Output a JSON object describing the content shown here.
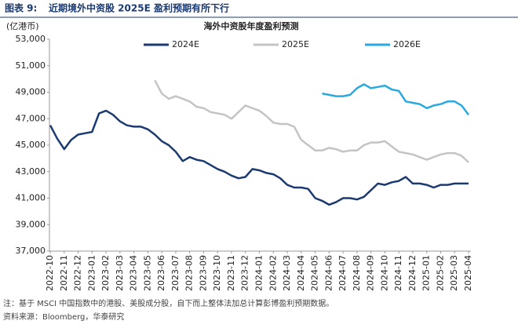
{
  "header": {
    "label": "图表 9:",
    "title": "近期境外中资股 2025E 盈利预期有所下行"
  },
  "chart_data": {
    "type": "line",
    "title": "海外中资股年度盈利预测",
    "y_label": "(亿港币)",
    "categories": [
      "2022-10",
      null,
      "2022-11",
      null,
      "2022-12",
      null,
      "2023-01",
      null,
      "2023-02",
      null,
      "2023-03",
      null,
      "2023-04",
      null,
      "2023-05",
      null,
      "2023-06",
      null,
      "2023-07",
      null,
      "2023-08",
      null,
      "2023-09",
      null,
      "2023-10",
      null,
      "2023-11",
      null,
      "2023-12",
      null,
      "2024-01",
      null,
      "2024-02",
      null,
      "2024-03",
      null,
      "2024-04",
      null,
      "2024-05",
      null,
      "2024-06",
      null,
      "2024-07",
      null,
      "2024-08",
      null,
      "2024-09",
      null,
      "2024-10",
      null,
      "2024-11",
      null,
      "2024-12",
      null,
      "2025-01",
      null,
      "2025-02",
      null,
      "2025-03",
      null,
      "2025-04"
    ],
    "series": [
      {
        "name": "2024E",
        "color": "#1b3a72",
        "values": [
          46500,
          45500,
          44700,
          45400,
          45800,
          45900,
          46000,
          47400,
          47600,
          47300,
          46800,
          46500,
          46400,
          46400,
          46200,
          45800,
          45300,
          45000,
          44500,
          43800,
          44100,
          43900,
          43800,
          43500,
          43200,
          43000,
          42700,
          42500,
          42600,
          43200,
          43100,
          42900,
          42800,
          42500,
          42000,
          41800,
          41800,
          41700,
          41000,
          40800,
          40500,
          40700,
          41000,
          41000,
          40900,
          41100,
          41600,
          42100,
          42000,
          42200,
          42300,
          42600,
          42100,
          42100,
          42000,
          41800,
          42000,
          42000,
          42100,
          42100,
          42100
        ]
      },
      {
        "name": "2025E",
        "color": "#c4c4c4",
        "values": [
          null,
          null,
          null,
          null,
          null,
          null,
          null,
          null,
          null,
          null,
          null,
          null,
          null,
          null,
          null,
          49900,
          48900,
          48500,
          48700,
          48500,
          48300,
          47900,
          47800,
          47500,
          47400,
          47300,
          47000,
          47500,
          48000,
          47800,
          47600,
          47200,
          46700,
          46600,
          46600,
          46400,
          45400,
          45000,
          44600,
          44600,
          44800,
          44700,
          44500,
          44600,
          44600,
          45000,
          45200,
          45200,
          45300,
          44900,
          44500,
          44400,
          44300,
          44100,
          43900,
          44100,
          44300,
          44400,
          44400,
          44200,
          43700
        ]
      },
      {
        "name": "2026E",
        "color": "#29a9e0",
        "values": [
          null,
          null,
          null,
          null,
          null,
          null,
          null,
          null,
          null,
          null,
          null,
          null,
          null,
          null,
          null,
          null,
          null,
          null,
          null,
          null,
          null,
          null,
          null,
          null,
          null,
          null,
          null,
          null,
          null,
          null,
          null,
          null,
          null,
          null,
          null,
          null,
          null,
          null,
          null,
          48900,
          48800,
          48700,
          48700,
          48800,
          49300,
          49600,
          49300,
          49400,
          49500,
          49200,
          49100,
          48300,
          48200,
          48100,
          47800,
          48000,
          48100,
          48300,
          48300,
          48000,
          47300
        ]
      }
    ],
    "ylim": [
      37000,
      53000
    ],
    "yticks": [
      {
        "value": 37000,
        "label": "37,000"
      },
      {
        "value": 39000,
        "label": "39,000"
      },
      {
        "value": 41000,
        "label": "41,000"
      },
      {
        "value": 43000,
        "label": "43,000"
      },
      {
        "value": 45000,
        "label": "45,000"
      },
      {
        "value": 47000,
        "label": "47,000"
      },
      {
        "value": 49000,
        "label": "49,000"
      },
      {
        "value": 51000,
        "label": "51,000"
      },
      {
        "value": 53000,
        "label": "53,000"
      }
    ]
  },
  "notes": [
    "注：基于 MSCI 中国指数中的港股、美股成分股，自下而上整体法加总计算彭博盈利预期数据。",
    "资料来源：Bloomberg，华泰研究"
  ]
}
